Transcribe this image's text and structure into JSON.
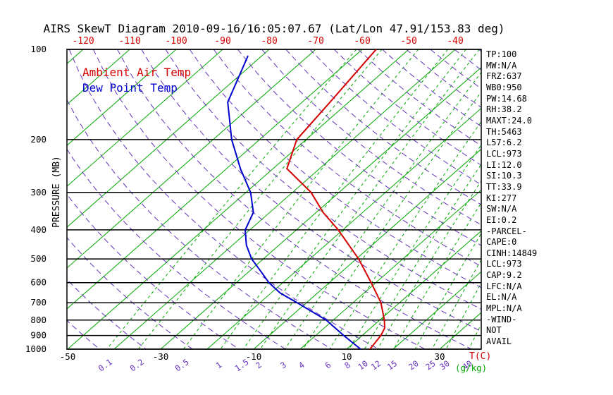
{
  "chart_data": {
    "type": "line",
    "title": "AIRS SkewT Diagram 2010-09-16/16:05:07.67 (Lat/Lon 47.91/153.83 deg)",
    "x_axis": {
      "top_labels_temp_c": [
        -120,
        -110,
        -100,
        -90,
        -80,
        -70,
        -60,
        -50,
        -40
      ],
      "bottom_temp_labels_c": [
        -50,
        -30,
        -10,
        10,
        30
      ],
      "mixing_ratio_labels_gkg": [
        0.1,
        0.2,
        0.5,
        1,
        1.5,
        2,
        3,
        4,
        6,
        8,
        10,
        12,
        15,
        20,
        25,
        30,
        40
      ],
      "temp_unit_label": "T(C)",
      "mixing_unit_label": "(g/kg)"
    },
    "y_axis": {
      "label": "PRESSURE (MB)",
      "scale": "log",
      "range_mb": [
        100,
        1000
      ],
      "ticks_mb": [
        100,
        200,
        300,
        400,
        500,
        600,
        700,
        800,
        900,
        1000
      ]
    },
    "grid": {
      "isotherms_c": {
        "min": -120,
        "max": 40,
        "step": 10
      },
      "dry_adiabats_k": {
        "min": 220,
        "max": 460,
        "step": 10
      }
    },
    "series": [
      {
        "name": "Ambient Air Temp",
        "color": "#d40000",
        "pressure_mb": [
          100,
          150,
          200,
          250,
          300,
          350,
          400,
          500,
          600,
          700,
          800,
          850,
          900,
          1000
        ],
        "temp_c": [
          -57,
          -54,
          -52,
          -47,
          -36,
          -28.5,
          -21,
          -9.5,
          -1,
          6,
          11,
          13,
          14,
          15
        ]
      },
      {
        "name": "Dew Point Temp",
        "color": "#0000cc",
        "pressure_mb": [
          105,
          150,
          200,
          250,
          300,
          350,
          400,
          450,
          500,
          550,
          600,
          650,
          700,
          800,
          900,
          1000
        ],
        "temp_c": [
          -83,
          -76,
          -66,
          -57,
          -49,
          -43.5,
          -41,
          -37,
          -32.5,
          -27.5,
          -23,
          -18,
          -12,
          -1.5,
          6,
          13
        ]
      }
    ],
    "colors": {
      "isotherm_green": "#00a800",
      "mixing_green": "#00a800",
      "adiabat_purple": "#6633bb",
      "axis_red": "#d40000",
      "axis_black": "#000000"
    }
  },
  "stats_panel": {
    "lines": [
      "TP:100",
      "MW:N/A",
      "FRZ:637",
      "WB0:950",
      "PW:14.68",
      "RH:38.2",
      "MAXT:24.0",
      "TH:5463",
      "L57:6.2",
      "LCL:973",
      "LI:12.0",
      "SI:10.3",
      "TT:33.9",
      "KI:277",
      "SW:N/A",
      "EI:0.2",
      "-PARCEL-",
      "CAPE:0",
      "CINH:14849",
      "LCL:973",
      "CAP:9.2",
      "LFC:N/A",
      "EL:N/A",
      "MPL:N/A",
      "-WIND-",
      "NOT",
      "AVAIL"
    ]
  }
}
